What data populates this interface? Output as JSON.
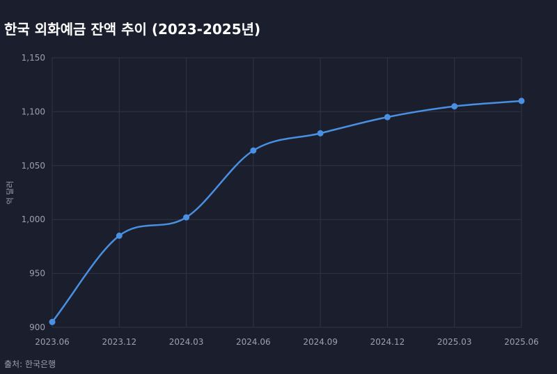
{
  "chart_data": {
    "type": "line",
    "title": "한국 외화예금 잔액 추이 (2023-2025년)",
    "xlabel": "",
    "ylabel": "억 달러",
    "x": [
      "2023.06",
      "2023.12",
      "2024.03",
      "2024.06",
      "2024.09",
      "2024.12",
      "2025.03",
      "2025.06"
    ],
    "series": [
      {
        "values": [
          905,
          985,
          1002,
          1064,
          1080,
          1095,
          1105,
          1110
        ],
        "color": "#4a90e2"
      }
    ],
    "ylim": [
      900,
      1150
    ],
    "yticks": [
      "900",
      "950",
      "1,000",
      "1,050",
      "1,100",
      "1,150"
    ],
    "grid": true,
    "legend": "none",
    "line_style": "smooth",
    "colors": {
      "background": "#1b1f2d",
      "grid": "#2f3546",
      "text": "#9aa1b3",
      "title": "#ffffff",
      "line": "#4a90e2"
    }
  },
  "footer": {
    "source": "출처: 한국은행"
  }
}
